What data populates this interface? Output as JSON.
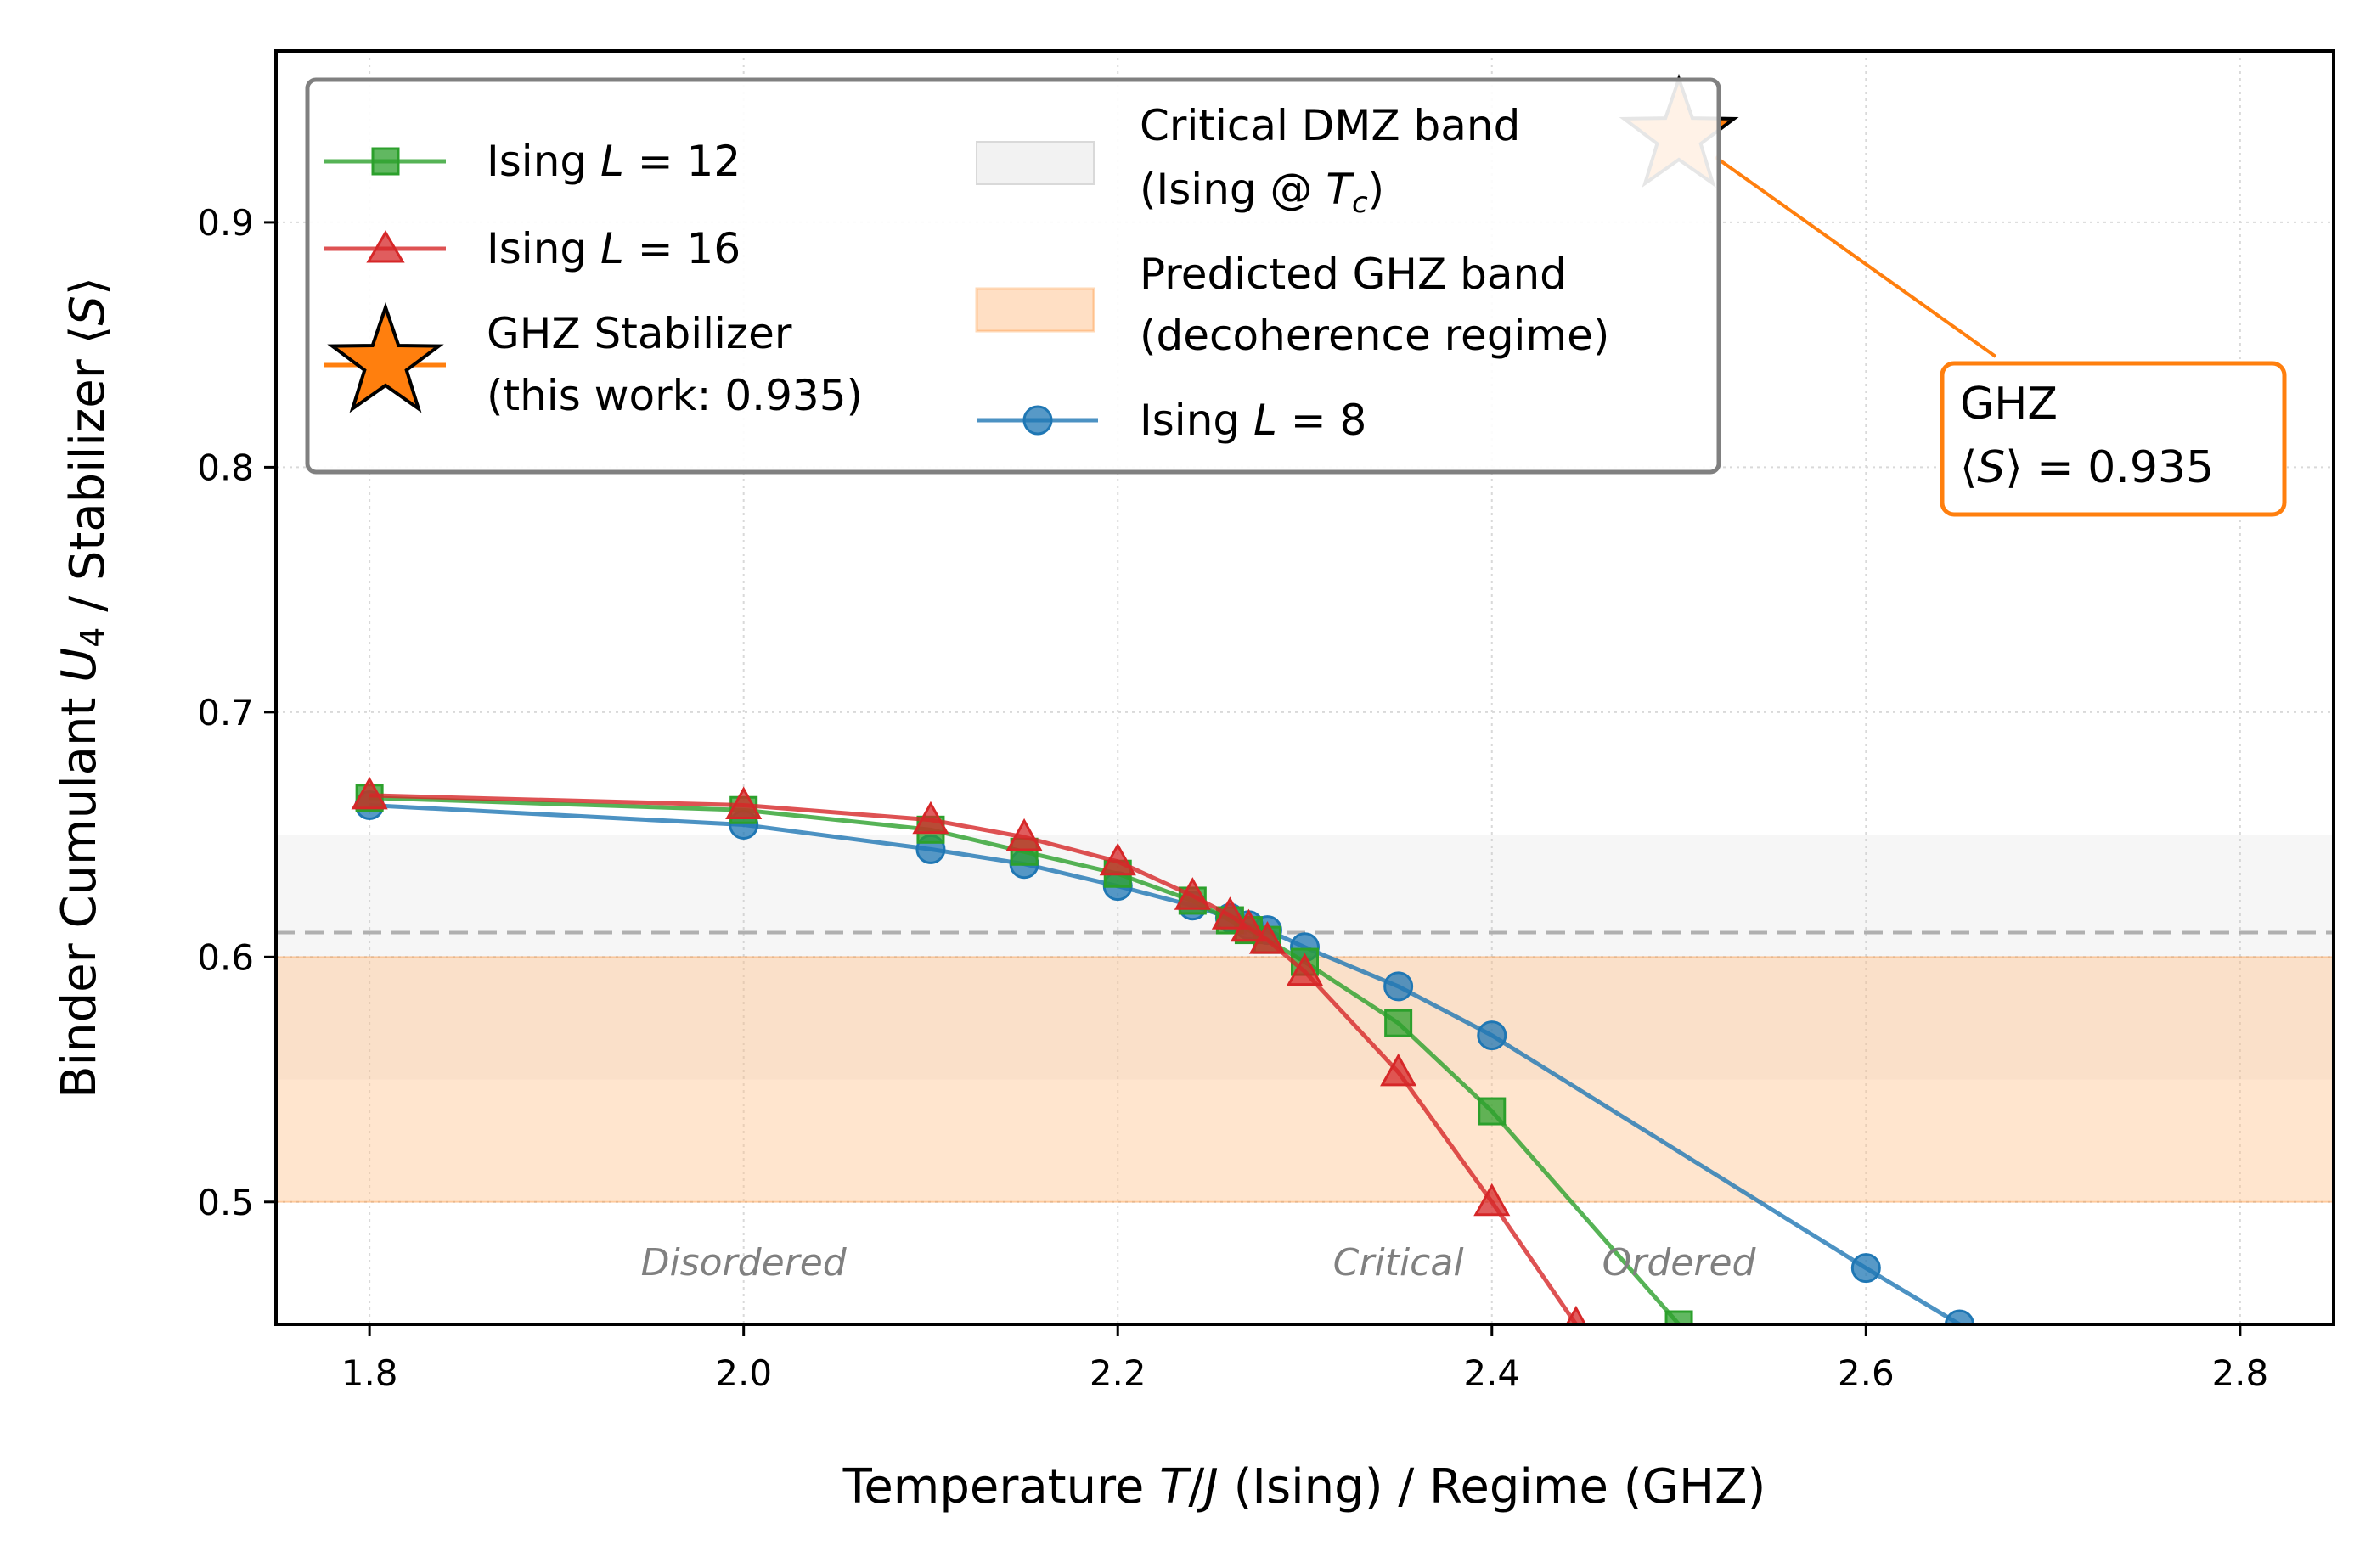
{
  "chart_data": {
    "type": "line",
    "xlabel": "Temperature T/J (Ising) / Regime (GHZ)",
    "ylabel": "Binder Cumulant U₄ / Stabilizer ⟨S⟩",
    "xlim": [
      1.75,
      2.85
    ],
    "ylim": [
      0.45,
      0.97
    ],
    "xticks": [
      1.8,
      2.0,
      2.2,
      2.4,
      2.6,
      2.8
    ],
    "xtick_labels": [
      "1.8",
      "2.0",
      "2.2",
      "2.4",
      "2.6",
      "2.8"
    ],
    "yticks": [
      0.5,
      0.6,
      0.7,
      0.8,
      0.9
    ],
    "ytick_labels": [
      "0.5",
      "0.6",
      "0.7",
      "0.8",
      "0.9"
    ],
    "grid": true,
    "legend_position": "upper-left",
    "series": [
      {
        "name": "Ising L = 12",
        "color": "#2ca02c",
        "marker": "square",
        "x": [
          1.8,
          2.0,
          2.1,
          2.15,
          2.2,
          2.24,
          2.26,
          2.27,
          2.28,
          2.3,
          2.35,
          2.4,
          2.5
        ],
        "y": [
          0.665,
          0.66,
          0.652,
          0.643,
          0.634,
          0.623,
          0.615,
          0.611,
          0.607,
          0.598,
          0.573,
          0.537,
          0.45
        ]
      },
      {
        "name": "Ising L = 16",
        "color": "#d62728",
        "marker": "triangle",
        "x": [
          1.8,
          2.0,
          2.1,
          2.15,
          2.2,
          2.24,
          2.26,
          2.27,
          2.28,
          2.3,
          2.35,
          2.4,
          2.445
        ],
        "y": [
          0.666,
          0.662,
          0.656,
          0.649,
          0.639,
          0.625,
          0.617,
          0.612,
          0.607,
          0.594,
          0.553,
          0.5,
          0.45
        ]
      },
      {
        "name": "Ising L = 8",
        "color": "#1f77b4",
        "marker": "circle",
        "x": [
          1.8,
          2.0,
          2.1,
          2.15,
          2.2,
          2.24,
          2.26,
          2.27,
          2.28,
          2.3,
          2.35,
          2.4,
          2.6,
          2.65
        ],
        "y": [
          0.662,
          0.654,
          0.644,
          0.638,
          0.629,
          0.621,
          0.616,
          0.613,
          0.611,
          0.604,
          0.588,
          0.568,
          0.473,
          0.45
        ]
      }
    ],
    "ghz_point": {
      "name": "GHZ Stabilizer",
      "x": 2.5,
      "y": 0.935,
      "color": "#ff7f0e"
    },
    "critical_line_y": 0.61,
    "critical_band": [
      0.55,
      0.65
    ],
    "predicted_band": [
      0.5,
      0.6
    ],
    "legend": {
      "ising12": {
        "prefix": "Ising ",
        "var": "L",
        "suffix": " = 12"
      },
      "ising16": {
        "prefix": "Ising ",
        "var": "L",
        "suffix": " = 16"
      },
      "ghz_line1": "GHZ Stabilizer",
      "ghz_line2": "(this work: 0.935)",
      "dmz_line1": "Critical DMZ band",
      "dmz_line2_prefix": "(Ising @ ",
      "dmz_line2_var": "T",
      "dmz_line2_sub": "c",
      "dmz_line2_suffix": ")",
      "pred_line1": "Predicted GHZ band",
      "pred_line2": "(decoherence regime)",
      "ising8": {
        "prefix": "Ising ",
        "var": "L",
        "suffix": " = 8"
      }
    },
    "annotation": {
      "line1": "GHZ",
      "line2_prefix": "⟨",
      "line2_var": "S",
      "line2_suffix": "⟩ = 0.935"
    },
    "region_labels": [
      {
        "text": "Disordered",
        "x": 2.0,
        "y": 0.475
      },
      {
        "text": "Critical",
        "x": 2.35,
        "y": 0.475
      },
      {
        "text": "Ordered",
        "x": 2.5,
        "y": 0.475
      }
    ]
  }
}
